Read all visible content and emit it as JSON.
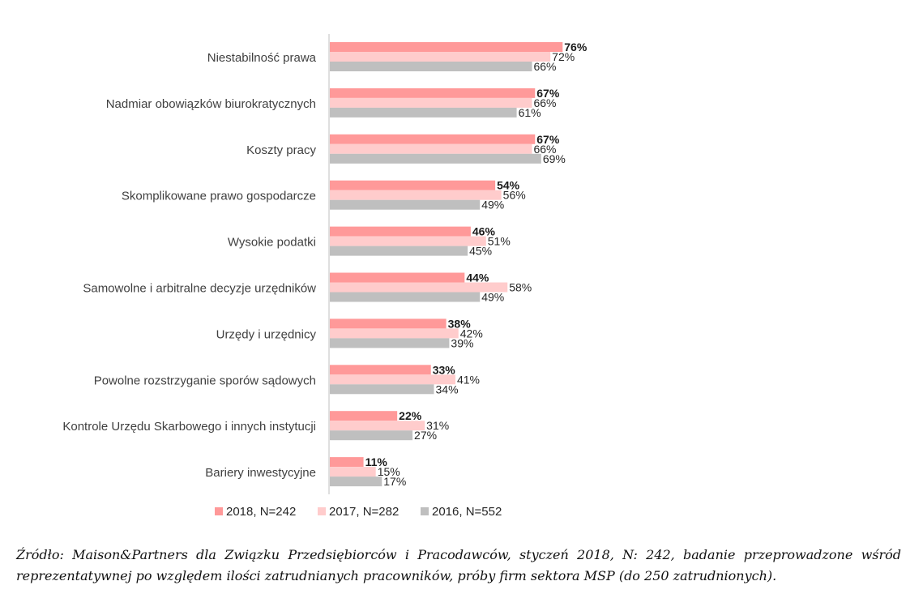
{
  "chart_data": {
    "type": "bar",
    "orientation": "horizontal",
    "categories": [
      "Niestabilność prawa",
      "Nadmiar obowiązków biurokratycznych",
      "Koszty pracy",
      "Skomplikowane prawo gospodarcze",
      "Wysokie podatki",
      "Samowolne i arbitralne decyzje urzędników",
      "Urzędy i urzędnicy",
      "Powolne rozstrzyganie sporów sądowych",
      "Kontrole Urzędu Skarbowego i innych instytucji",
      "Bariery inwestycyjne"
    ],
    "series": [
      {
        "name": "2018, N=242",
        "color": "#ff9999",
        "values": [
          76,
          67,
          67,
          54,
          46,
          44,
          38,
          33,
          22,
          11
        ],
        "labels": [
          "76%",
          "67%",
          "67%",
          "54%",
          "46%",
          "44%",
          "38%",
          "33%",
          "22%",
          "11%"
        ]
      },
      {
        "name": "2017, N=282",
        "color": "#ffcccc",
        "values": [
          72,
          66,
          66,
          56,
          51,
          58,
          42,
          41,
          31,
          15
        ],
        "labels": [
          "72%",
          "66%",
          "66%",
          "56%",
          "51%",
          "58%",
          "42%",
          "41%",
          "31%",
          "15%"
        ]
      },
      {
        "name": "2016, N=552",
        "color": "#bfbfbf",
        "values": [
          66,
          61,
          69,
          49,
          45,
          49,
          39,
          34,
          27,
          17
        ],
        "labels": [
          "66%",
          "61%",
          "69%",
          "49%",
          "45%",
          "49%",
          "39%",
          "34%",
          "27%",
          "17%"
        ]
      }
    ],
    "xlim": [
      0,
      100
    ],
    "grid": false,
    "legend_position": "bottom"
  },
  "source_text": "Źródło: Maison&Partners dla Związku Przedsiębiorców i Pracodawców, styczeń 2018, N: 242, badanie przeprowadzone wśród reprezentatywnej po względem ilości zatrudnianych pracowników, próby firm sektora MSP (do 250 zatrudnionych)."
}
